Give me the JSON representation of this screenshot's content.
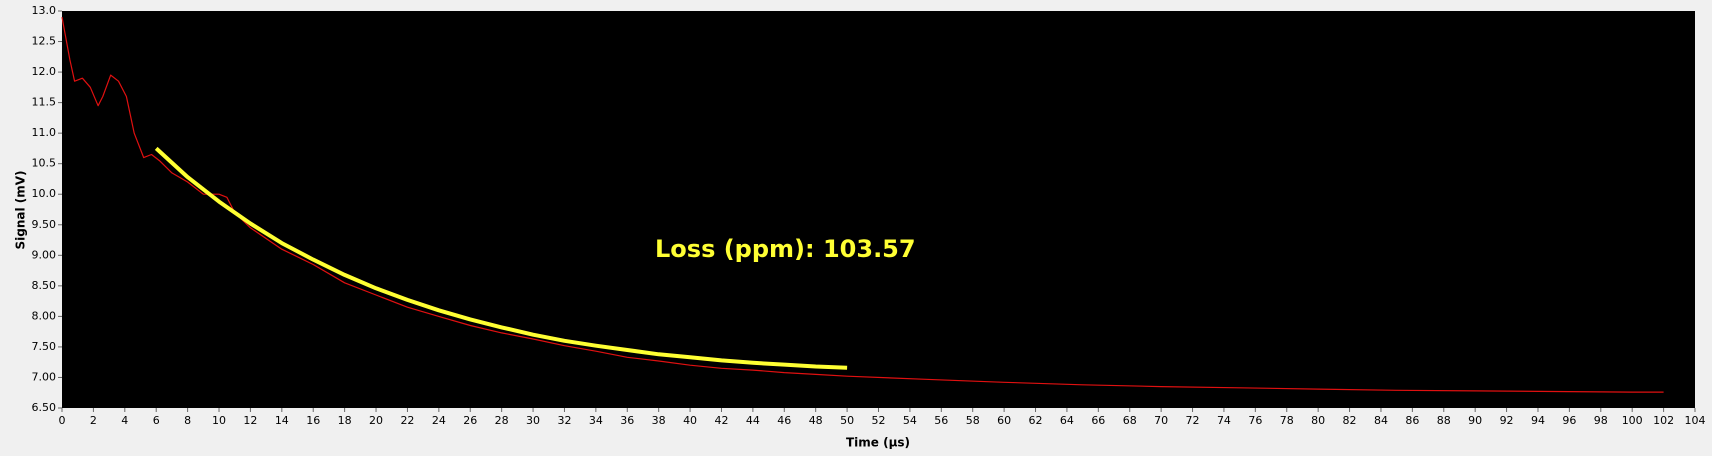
{
  "chart_data": {
    "type": "line",
    "x_label": "Time (µs)",
    "y_label": "Signal (mV)",
    "annotation": {
      "text": "Loss (ppm): 103.57",
      "color": "#ffff33"
    },
    "background": "#000000",
    "xlim": [
      0,
      104
    ],
    "ylim": [
      6.5,
      13.0
    ],
    "xticks": [
      0,
      2,
      4,
      6,
      8,
      10,
      12,
      14,
      16,
      18,
      20,
      22,
      24,
      26,
      28,
      30,
      32,
      34,
      36,
      38,
      40,
      42,
      44,
      46,
      48,
      50,
      52,
      54,
      56,
      58,
      60,
      62,
      64,
      66,
      68,
      70,
      72,
      74,
      76,
      78,
      80,
      82,
      84,
      86,
      88,
      90,
      92,
      94,
      96,
      98,
      100,
      102,
      104
    ],
    "yticks": [
      {
        "value": 6.5,
        "label": "6.50"
      },
      {
        "value": 7,
        "label": "7.00"
      },
      {
        "value": 7.5,
        "label": "7.50"
      },
      {
        "value": 8,
        "label": "8.00"
      },
      {
        "value": 8.5,
        "label": "8.50"
      },
      {
        "value": 9,
        "label": "9.00"
      },
      {
        "value": 9.5,
        "label": "9.50"
      },
      {
        "value": 10,
        "label": "10.0"
      },
      {
        "value": 10.5,
        "label": "10.5"
      },
      {
        "value": 11,
        "label": "11.0"
      },
      {
        "value": 11.5,
        "label": "11.5"
      },
      {
        "value": 12,
        "label": "12.0"
      },
      {
        "value": 12.5,
        "label": "12.5"
      },
      {
        "value": 13,
        "label": "13.0"
      }
    ],
    "series": [
      {
        "color": "#e01010",
        "width": 1.2,
        "x": [
          0,
          0.5,
          0.8,
          1.3,
          1.8,
          2.3,
          2.6,
          3.1,
          3.6,
          4.1,
          4.6,
          5.2,
          5.7,
          6.2,
          7,
          8,
          9,
          10,
          10.5,
          11,
          12,
          14,
          16,
          18,
          20,
          22,
          24,
          26,
          28,
          30,
          32,
          34,
          36,
          38,
          40,
          42,
          44,
          46,
          48,
          50,
          55,
          60,
          65,
          70,
          75,
          80,
          85,
          90,
          95,
          100,
          102
        ],
        "values": [
          12.9,
          12.2,
          11.85,
          11.9,
          11.75,
          11.45,
          11.6,
          11.95,
          11.85,
          11.6,
          11.0,
          10.6,
          10.65,
          10.55,
          10.35,
          10.2,
          10.0,
          10.0,
          9.95,
          9.7,
          9.45,
          9.1,
          8.85,
          8.55,
          8.35,
          8.15,
          8.0,
          7.85,
          7.73,
          7.63,
          7.52,
          7.43,
          7.33,
          7.27,
          7.2,
          7.15,
          7.12,
          7.08,
          7.05,
          7.02,
          6.97,
          6.92,
          6.88,
          6.85,
          6.83,
          6.81,
          6.79,
          6.78,
          6.77,
          6.76,
          6.76
        ]
      },
      {
        "color": "#ffff33",
        "width": 4,
        "x": [
          6,
          8,
          10,
          12,
          14,
          16,
          18,
          20,
          22,
          24,
          26,
          28,
          30,
          32,
          34,
          36,
          38,
          40,
          42,
          44,
          46,
          48,
          50
        ],
        "values": [
          10.75,
          10.28,
          9.88,
          9.52,
          9.2,
          8.93,
          8.68,
          8.46,
          8.27,
          8.1,
          7.95,
          7.82,
          7.7,
          7.6,
          7.52,
          7.45,
          7.38,
          7.33,
          7.28,
          7.24,
          7.21,
          7.18,
          7.16
        ]
      }
    ]
  }
}
